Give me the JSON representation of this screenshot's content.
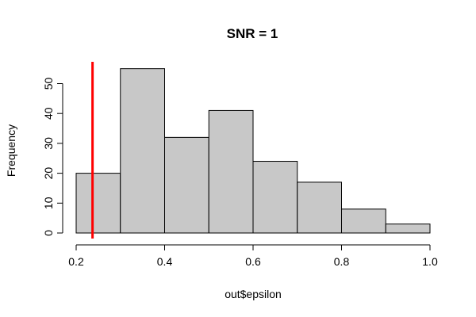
{
  "chart_data": {
    "type": "bar",
    "title": "SNR = 1",
    "xlabel": "out$epsilon",
    "ylabel": "Frequency",
    "bins": [
      {
        "start": 0.2,
        "end": 0.3,
        "count": 20
      },
      {
        "start": 0.3,
        "end": 0.4,
        "count": 55
      },
      {
        "start": 0.4,
        "end": 0.5,
        "count": 32
      },
      {
        "start": 0.5,
        "end": 0.6,
        "count": 41
      },
      {
        "start": 0.6,
        "end": 0.7,
        "count": 24
      },
      {
        "start": 0.7,
        "end": 0.8,
        "count": 17
      },
      {
        "start": 0.8,
        "end": 0.9,
        "count": 8
      },
      {
        "start": 0.9,
        "end": 1.0,
        "count": 3
      }
    ],
    "xlim": [
      0.2,
      1.0
    ],
    "ylim": [
      0,
      55
    ],
    "x_ticks": [
      0.2,
      0.4,
      0.6,
      0.8,
      1.0
    ],
    "x_tick_labels": [
      "0.2",
      "0.4",
      "0.6",
      "0.8",
      "1.0"
    ],
    "y_ticks": [
      0,
      10,
      20,
      30,
      40,
      50
    ],
    "y_tick_labels": [
      "0",
      "10",
      "20",
      "30",
      "40",
      "50"
    ],
    "reference_line": {
      "x": 0.237,
      "color": "#ff0000"
    },
    "bar_fill": "#c8c8c8",
    "grid": false,
    "legend": "none"
  }
}
